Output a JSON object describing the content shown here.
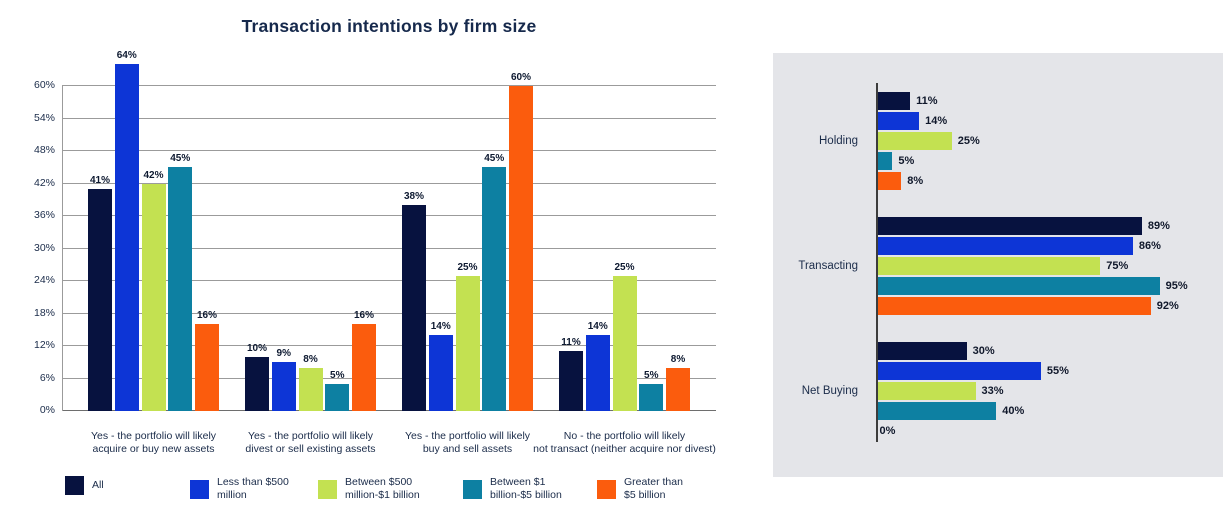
{
  "palette": {
    "navy": "#07123f",
    "blue": "#0d35d6",
    "lime": "#c3e151",
    "teal": "#0d80a2",
    "orange": "#fb5c0d",
    "panel_bg": "#e4e5e9",
    "title_text": "#16294c",
    "label_text": "#1a2b49",
    "gridline": "#9b9b9b"
  },
  "chart_data": [
    {
      "type": "bar",
      "orientation": "vertical",
      "title": "Transaction intentions by firm size",
      "xlabel": "",
      "ylabel": "",
      "ylim": [
        0,
        66
      ],
      "y_ticks": [
        0,
        6,
        12,
        18,
        24,
        30,
        36,
        42,
        48,
        54,
        60
      ],
      "y_tick_suffix": "%",
      "grid": true,
      "value_label_suffix": "%",
      "legend_position": "bottom",
      "categories": [
        "Yes - the portfolio will likely\nacquire or buy new assets",
        "Yes - the portfolio will likely\ndivest or sell existing assets",
        "Yes - the portfolio will likely\nbuy and sell assets",
        "No - the portfolio will likely\nnot transact (neither acquire nor divest)"
      ],
      "series": [
        {
          "name": "All",
          "color": "#07123f",
          "values": [
            41,
            10,
            38,
            11
          ]
        },
        {
          "name": "Less than $500 million",
          "color": "#0d35d6",
          "values": [
            64,
            9,
            14,
            14
          ]
        },
        {
          "name": "Between $500 million-$1 billion",
          "color": "#c3e151",
          "values": [
            42,
            8,
            25,
            25
          ]
        },
        {
          "name": "Between $1 billion-$5 billion",
          "color": "#0d80a2",
          "values": [
            45,
            5,
            45,
            5
          ]
        },
        {
          "name": "Greater than $5 billion",
          "color": "#fb5c0d",
          "values": [
            16,
            16,
            60,
            8
          ]
        }
      ]
    },
    {
      "type": "bar",
      "orientation": "horizontal",
      "title": "",
      "xlim": [
        0,
        100
      ],
      "grid": false,
      "value_label_suffix": "%",
      "background": "#e4e5e9",
      "categories": [
        "Holding",
        "Transacting",
        "Net Buying"
      ],
      "series": [
        {
          "name": "All",
          "color": "#07123f",
          "values": [
            11,
            89,
            30
          ]
        },
        {
          "name": "Less than $500 million",
          "color": "#0d35d6",
          "values": [
            14,
            86,
            55
          ]
        },
        {
          "name": "Between $500 million-$1 billion",
          "color": "#c3e151",
          "values": [
            25,
            75,
            33
          ]
        },
        {
          "name": "Between $1 billion-$5 billion",
          "color": "#0d80a2",
          "values": [
            5,
            95,
            40
          ]
        },
        {
          "name": "Greater than $5 billion",
          "color": "#fb5c0d",
          "values": [
            8,
            92,
            0
          ]
        }
      ]
    }
  ],
  "legend": {
    "items": [
      {
        "label": "All",
        "color": "#07123f"
      },
      {
        "label": "Less than $500\nmillion",
        "color": "#0d35d6"
      },
      {
        "label": "Between $500\nmillion-$1 billion",
        "color": "#c3e151"
      },
      {
        "label": "Between $1\nbillion-$5 billion",
        "color": "#0d80a2"
      },
      {
        "label": "Greater than\n$5 billion",
        "color": "#fb5c0d"
      }
    ]
  }
}
